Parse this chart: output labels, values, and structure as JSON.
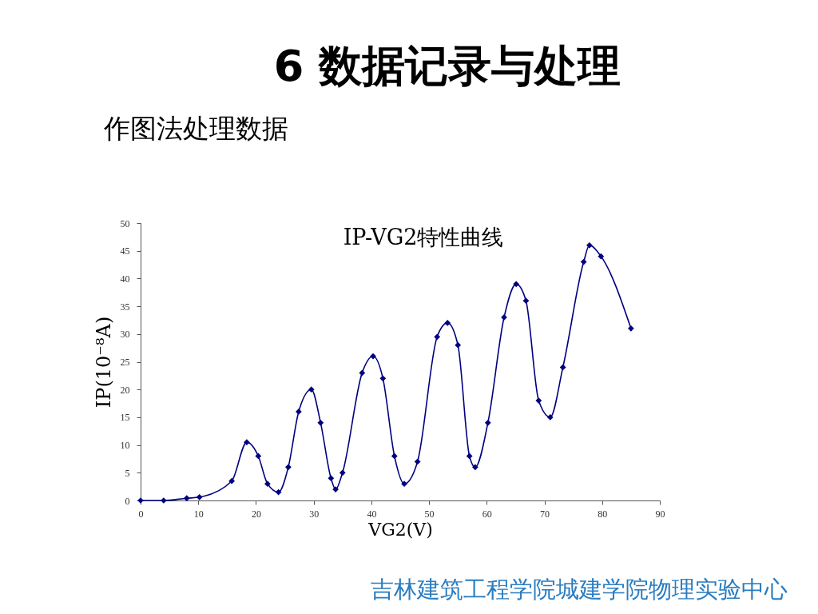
{
  "chart_data": {
    "type": "line",
    "title": "6 数据记录与处理",
    "subtitle": "作图法处理数据",
    "xlabel": "VG2(V)",
    "ylabel": "IP(10⁻⁸A)",
    "annotations": [
      "IP-VG2特性曲线",
      "吉林建筑工程学院城建学院物理实验中心"
    ],
    "x": [
      0,
      4,
      8,
      10.2,
      15.8,
      18.4,
      20.4,
      22,
      23.9,
      25.6,
      27.4,
      29.6,
      31.2,
      33,
      33.8,
      35,
      38.4,
      40.3,
      42,
      44,
      45.7,
      48,
      51.4,
      53.2,
      55,
      57,
      58,
      60.2,
      63,
      65.1,
      66.8,
      69,
      71,
      73.2,
      76.8,
      77.8,
      79.8,
      85
    ],
    "series": [
      {
        "color": "#000080",
        "values": [
          0,
          0,
          0.4,
          0.6,
          3.5,
          10.5,
          8,
          3,
          1.5,
          6,
          16,
          20,
          14,
          4,
          2,
          5,
          23,
          26,
          22,
          8,
          3,
          7,
          29.5,
          32,
          28,
          8,
          6,
          14,
          33,
          39,
          36,
          18,
          15,
          24,
          43,
          46,
          44,
          31
        ]
      }
    ],
    "xlim": [
      0,
      90
    ],
    "ylim": [
      0,
      50
    ],
    "xticks": [
      0,
      10,
      20,
      30,
      40,
      50,
      60,
      70,
      80,
      90
    ],
    "yticks": [
      0,
      5,
      10,
      15,
      20,
      25,
      30,
      35,
      40,
      45,
      50
    ],
    "marker": "diamond",
    "line_style": "solid"
  }
}
